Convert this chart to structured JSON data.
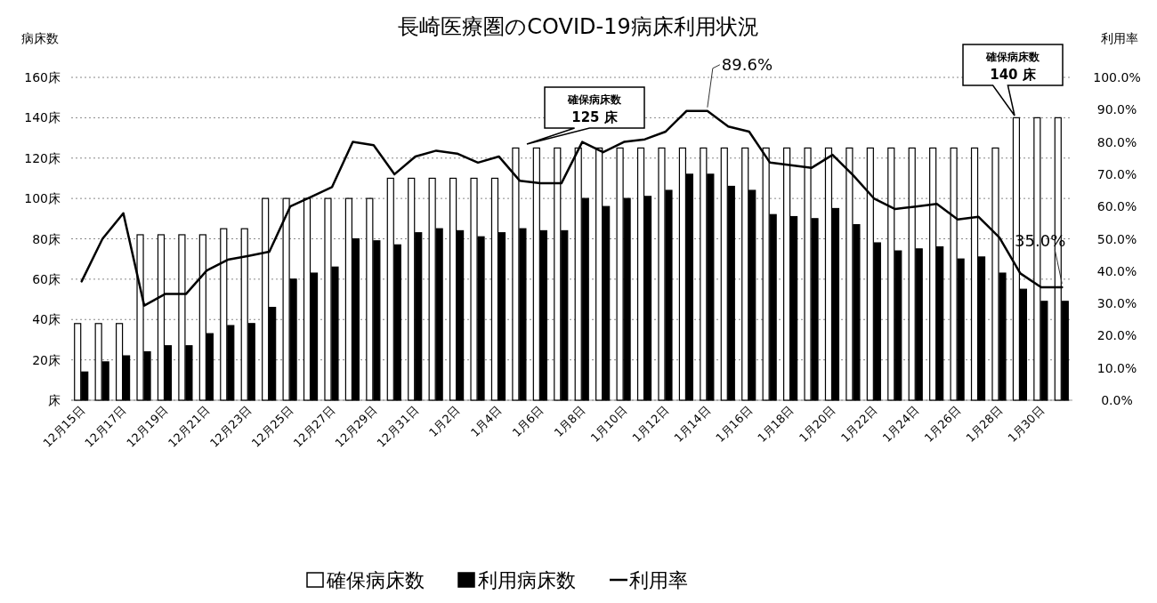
{
  "chart_data": {
    "type": "bar",
    "title": "長崎医療圏のCOVID-19病床利用状況",
    "ylabel": "病床数",
    "y2label": "利用率",
    "categories": [
      "12月15日",
      null,
      "12月17日",
      null,
      "12月19日",
      null,
      "12月21日",
      null,
      "12月23日",
      null,
      "12月25日",
      null,
      "12月27日",
      null,
      "12月29日",
      null,
      "12月31日",
      null,
      "1月2日",
      null,
      "1月4日",
      null,
      "1月6日",
      null,
      "1月8日",
      null,
      "1月10日",
      null,
      "1月12日",
      null,
      "1月14日",
      null,
      "1月16日",
      null,
      "1月18日",
      null,
      "1月20日",
      null,
      "1月22日",
      null,
      "1月24日",
      null,
      "1月26日",
      null,
      "1月28日",
      null,
      "1月30日",
      null
    ],
    "series": [
      {
        "name": "確保病床数",
        "color": "#ffffff",
        "values": [
          38,
          38,
          38,
          82,
          82,
          82,
          82,
          85,
          85,
          100,
          100,
          100,
          100,
          100,
          100,
          110,
          110,
          110,
          110,
          110,
          110,
          125,
          125,
          125,
          125,
          125,
          125,
          125,
          125,
          125,
          125,
          125,
          125,
          125,
          125,
          125,
          125,
          125,
          125,
          125,
          125,
          125,
          125,
          125,
          125,
          140,
          140,
          140
        ]
      },
      {
        "name": "利用病床数",
        "color": "#000000",
        "values": [
          14,
          19,
          22,
          24,
          27,
          27,
          33,
          37,
          38,
          46,
          60,
          63,
          66,
          80,
          79,
          77,
          83,
          85,
          84,
          81,
          83,
          85,
          84,
          84,
          100,
          96,
          100,
          101,
          104,
          112,
          112,
          106,
          104,
          92,
          91,
          90,
          95,
          87,
          78,
          74,
          75,
          76,
          70,
          71,
          63,
          55,
          49,
          49
        ]
      },
      {
        "name": "利用率",
        "type": "line",
        "axis": "y2",
        "color": "#000000",
        "values": [
          36.8,
          50.0,
          57.9,
          29.3,
          32.9,
          32.9,
          40.2,
          43.5,
          44.7,
          46.0,
          60.0,
          63.0,
          66.0,
          80.0,
          79.0,
          70.0,
          75.5,
          77.3,
          76.4,
          73.6,
          75.5,
          68.0,
          67.2,
          67.2,
          80.0,
          76.8,
          80.0,
          80.8,
          83.2,
          89.6,
          89.6,
          84.8,
          83.2,
          73.6,
          72.8,
          72.0,
          76.0,
          69.6,
          62.4,
          59.2,
          60.0,
          60.8,
          56.0,
          56.8,
          50.4,
          39.3,
          35.0,
          35.0
        ],
        "value_labels": [
          null,
          null,
          null,
          null,
          null,
          null,
          null,
          null,
          null,
          null,
          null,
          null,
          null,
          null,
          null,
          null,
          null,
          null,
          null,
          null,
          null,
          null,
          null,
          null,
          null,
          null,
          null,
          null,
          null,
          null,
          "89.6%",
          null,
          null,
          null,
          null,
          null,
          null,
          null,
          null,
          null,
          null,
          null,
          null,
          null,
          null,
          null,
          null,
          "35.0%"
        ]
      }
    ],
    "ylim": [
      0,
      160
    ],
    "yticks": [
      {
        "value": 0,
        "label": "床"
      },
      {
        "value": 20,
        "label": "20床"
      },
      {
        "value": 40,
        "label": "40床"
      },
      {
        "value": 60,
        "label": "60床"
      },
      {
        "value": 80,
        "label": "80床"
      },
      {
        "value": 100,
        "label": "100床"
      },
      {
        "value": 120,
        "label": "120床"
      },
      {
        "value": 140,
        "label": "140床"
      },
      {
        "value": 160,
        "label": "160床"
      }
    ],
    "y2lim": [
      0,
      100
    ],
    "y2ticks": [
      {
        "value": 0,
        "label": "0.0%"
      },
      {
        "value": 10,
        "label": "10.0%"
      },
      {
        "value": 20,
        "label": "20.0%"
      },
      {
        "value": 30,
        "label": "30.0%"
      },
      {
        "value": 40,
        "label": "40.0%"
      },
      {
        "value": 50,
        "label": "50.0%"
      },
      {
        "value": 60,
        "label": "60.0%"
      },
      {
        "value": 70,
        "label": "70.0%"
      },
      {
        "value": 80,
        "label": "80.0%"
      },
      {
        "value": 90,
        "label": "90.0%"
      },
      {
        "value": 100,
        "label": "100.0%"
      }
    ],
    "grid": "y",
    "legend": "bottom",
    "annotations": [
      "確保病床数\n125 床",
      "確保病床数\n140 床"
    ]
  }
}
